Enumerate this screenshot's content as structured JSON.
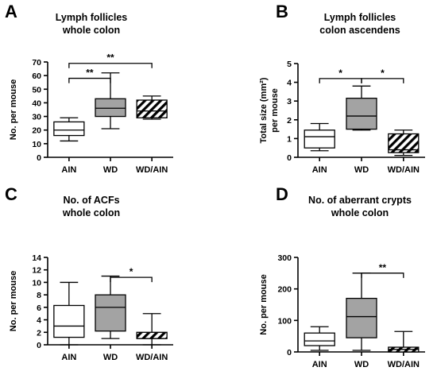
{
  "colors": {
    "white": "#ffffff",
    "grey": "#a3a3a3",
    "hatch": "#ffffff"
  },
  "chart_data": [
    {
      "type": "box",
      "panel": "A",
      "title": [
        "Lymph follicles",
        "whole colon"
      ],
      "ylabel": [
        "No. per mouse"
      ],
      "ylim": [
        0,
        70
      ],
      "yticks": [
        0,
        10,
        20,
        30,
        40,
        50,
        60,
        70
      ],
      "categories": [
        "AIN",
        "WD",
        "WD/AIN"
      ],
      "fills": [
        "white",
        "grey",
        "hatch"
      ],
      "boxes": [
        {
          "min": 12,
          "q1": 16,
          "median": 20,
          "q3": 26,
          "max": 29
        },
        {
          "min": 21,
          "q1": 30,
          "median": 36,
          "q3": 43,
          "max": 62
        },
        {
          "min": 28,
          "q1": 29,
          "median": 34,
          "q3": 42,
          "max": 45
        }
      ],
      "significance": [
        {
          "from": 0,
          "to": 1,
          "label": "**",
          "y": 58
        },
        {
          "from": 0,
          "to": 2,
          "label": "**",
          "y": 69
        }
      ]
    },
    {
      "type": "box",
      "panel": "B",
      "title": [
        "Lymph follicles",
        "colon ascendens"
      ],
      "ylabel": [
        "Total size  (mm²)",
        "per mouse"
      ],
      "ylim": [
        0,
        5
      ],
      "yticks": [
        0,
        1,
        2,
        3,
        4,
        5
      ],
      "categories": [
        "AIN",
        "WD",
        "WD/AIN"
      ],
      "fills": [
        "white",
        "grey",
        "hatch"
      ],
      "boxes": [
        {
          "min": 0.35,
          "q1": 0.5,
          "median": 1.1,
          "q3": 1.45,
          "max": 1.8
        },
        {
          "min": 1.45,
          "q1": 1.5,
          "median": 2.2,
          "q3": 3.15,
          "max": 3.8
        },
        {
          "min": 0.1,
          "q1": 0.25,
          "median": 0.4,
          "q3": 1.25,
          "max": 1.45
        }
      ],
      "significance": [
        {
          "from": 0,
          "to": 1,
          "label": "*",
          "y": 4.2
        },
        {
          "from": 1,
          "to": 2,
          "label": "*",
          "y": 4.2
        }
      ]
    },
    {
      "type": "box",
      "panel": "C",
      "title": [
        "No. of ACFs",
        "whole colon"
      ],
      "ylabel": [
        "No. per mouse"
      ],
      "ylim": [
        0,
        14
      ],
      "yticks": [
        0,
        2,
        4,
        6,
        8,
        10,
        12,
        14
      ],
      "categories": [
        "AIN",
        "WD",
        "WD/AIN"
      ],
      "fills": [
        "white",
        "grey",
        "hatch"
      ],
      "boxes": [
        {
          "min": 0,
          "q1": 1.2,
          "median": 3,
          "q3": 6.3,
          "max": 10
        },
        {
          "min": 1,
          "q1": 2.2,
          "median": 6,
          "q3": 8,
          "max": 11
        },
        {
          "min": 0,
          "q1": 1,
          "median": 1,
          "q3": 2,
          "max": 5
        }
      ],
      "significance": [
        {
          "from": 1,
          "to": 2,
          "label": "*",
          "y": 10.8
        }
      ]
    },
    {
      "type": "box",
      "panel": "D",
      "title": [
        "No. of aberrant crypts",
        "whole colon"
      ],
      "ylabel": [
        "No. per mouse"
      ],
      "ylim": [
        0,
        300
      ],
      "yticks": [
        0,
        100,
        200,
        300
      ],
      "categories": [
        "AIN",
        "WD",
        "WD/AIN"
      ],
      "fills": [
        "white",
        "grey",
        "hatch"
      ],
      "boxes": [
        {
          "min": 5,
          "q1": 20,
          "median": 35,
          "q3": 60,
          "max": 80
        },
        {
          "min": 5,
          "q1": 45,
          "median": 112,
          "q3": 170,
          "max": 250
        },
        {
          "min": 0,
          "q1": 0,
          "median": 8,
          "q3": 15,
          "max": 65
        }
      ],
      "significance": [
        {
          "from": 1,
          "to": 2,
          "label": "**",
          "y": 250
        }
      ]
    }
  ]
}
